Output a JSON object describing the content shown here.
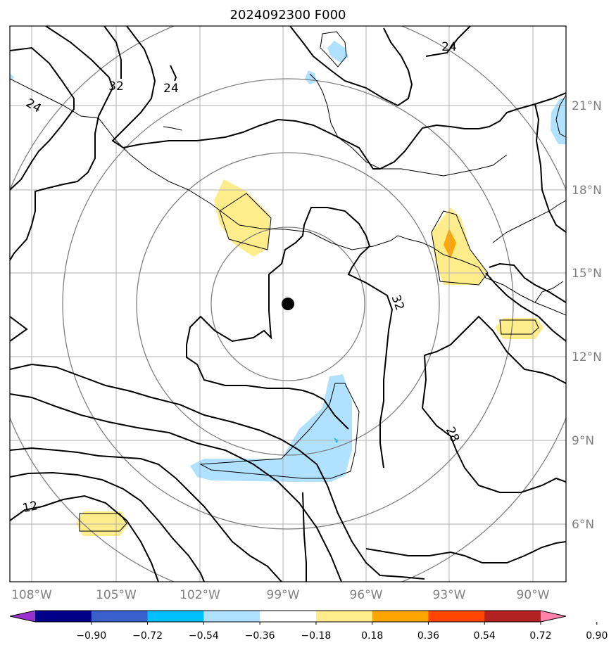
{
  "title": "2024092300 F000",
  "lon_ticks": [
    "108°W",
    "105°W",
    "102°W",
    "99°W",
    "96°W",
    "93°W",
    "90°W"
  ],
  "lat_ticks": [
    "21°N",
    "18°N",
    "15°N",
    "12°N",
    "9°N",
    "6°N"
  ],
  "contour_labels": [
    "32",
    "24",
    "24",
    "24",
    "32",
    "28",
    "12"
  ],
  "colorbar": {
    "ticks": [
      "−0.90",
      "−0.72",
      "−0.54",
      "−0.36",
      "−0.18",
      "0.18",
      "0.36",
      "0.54",
      "0.72",
      "0.90"
    ],
    "colors": [
      "#9932CC",
      "#00008B",
      "#3A5FCD",
      "#00BFFF",
      "#B0E2FF",
      "#FFFFFF",
      "#FFEC8B",
      "#FFA500",
      "#FF4500",
      "#B22222",
      "#FF82AB"
    ]
  },
  "storm_center": {
    "label": "storm-center",
    "lat": 13.9,
    "lon": -98.8
  }
}
